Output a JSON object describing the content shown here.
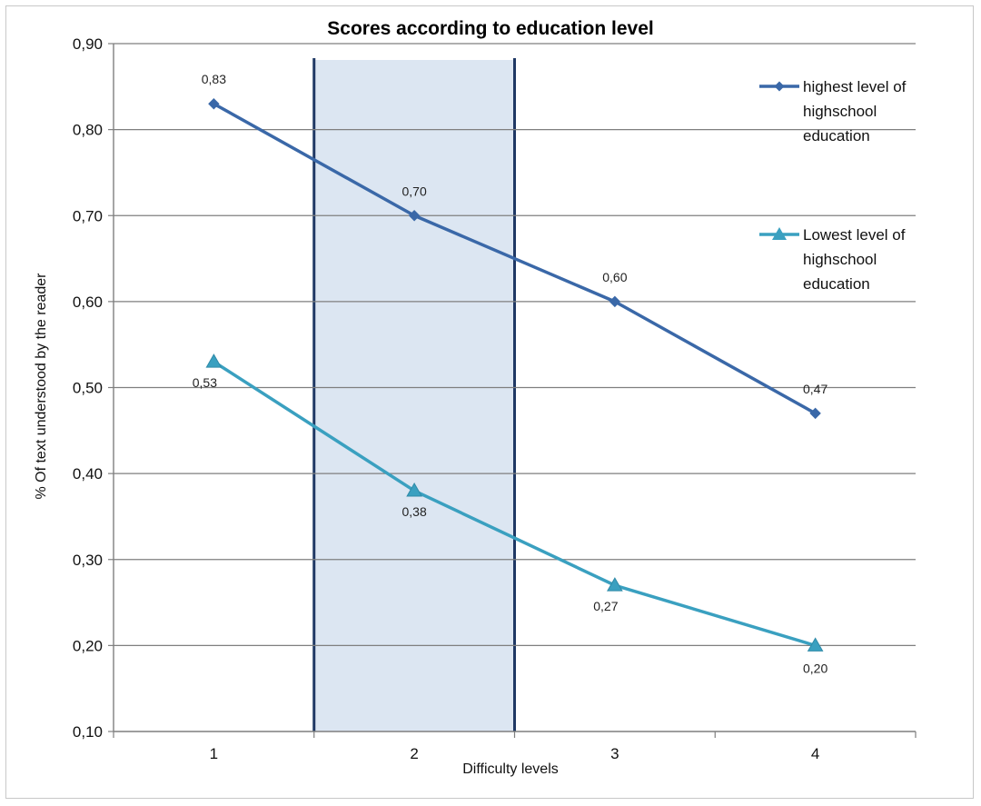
{
  "chart_data": {
    "type": "line",
    "title": "Scores according to education level",
    "xlabel": "Difficulty levels",
    "ylabel": "% Of text understood by the reader",
    "categories": [
      "1",
      "2",
      "3",
      "4"
    ],
    "ylim": [
      0.1,
      0.9
    ],
    "yticks": [
      "0,10",
      "0,20",
      "0,30",
      "0,40",
      "0,50",
      "0,60",
      "0,70",
      "0,80",
      "0,90"
    ],
    "grid": true,
    "legend_position": "top-right",
    "highlight_band": {
      "from_category": 1.5,
      "to_category": 2.5,
      "color": "#dce6f2",
      "border_color": "#1f3864"
    },
    "series": [
      {
        "name": "highest level of highschool education",
        "legend_lines": [
          "highest level of",
          "highschool",
          "education"
        ],
        "marker": "diamond",
        "color": "#3a68a8",
        "values": [
          0.83,
          0.7,
          0.6,
          0.47
        ],
        "labels": [
          "0,83",
          "0,70",
          "0,60",
          "0,47"
        ]
      },
      {
        "name": "Lowest level of highschool education",
        "legend_lines": [
          "Lowest level of",
          "highschool",
          "education"
        ],
        "marker": "triangle",
        "color": "#3aa0c0",
        "values": [
          0.53,
          0.38,
          0.27,
          0.2
        ],
        "labels": [
          "0,53",
          "0,38",
          "0,27",
          "0,20"
        ]
      }
    ]
  }
}
